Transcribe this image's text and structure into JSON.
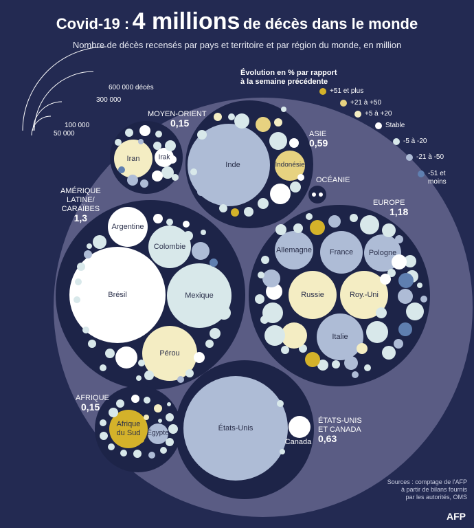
{
  "header": {
    "title_pre": "Covid-19 :",
    "title_big": "4 millions",
    "title_post": "de décès dans le monde",
    "subtitle": "Nombre de décès recensés par pays et territoire et par région du monde, en million"
  },
  "legend": {
    "title_line1": "Évolution en % par rapport",
    "title_line2": "à la semaine précédente",
    "items": [
      {
        "label": "+51 et plus",
        "color": "#d4b22a"
      },
      {
        "label": "+21 à +50",
        "color": "#e7d280"
      },
      {
        "label": "+5 à +20",
        "color": "#f4edc3"
      },
      {
        "label": "Stable",
        "color": "#ffffff"
      },
      {
        "label": "-5 à -20",
        "color": "#d8e8ea"
      },
      {
        "label": "-21 à -50",
        "color": "#aebcd6"
      },
      {
        "label": "-51 et moins",
        "color": "#5f7fb0"
      }
    ]
  },
  "size_legend": [
    "600 000 décès",
    "300 000",
    "100 000",
    "50 000"
  ],
  "colors": {
    "background": "#232a52",
    "world_disc": "#5a5c84",
    "region_disc": "#1d2448"
  },
  "chart_data": {
    "type": "bubble",
    "unit": "millions",
    "total": "4 millions",
    "regions": [
      {
        "name": "MOYEN-ORIENT",
        "value": "0,15",
        "countries": [
          "Iran",
          "Irak"
        ]
      },
      {
        "name": "ASIE",
        "value": "0,59",
        "countries": [
          "Inde",
          "Indonésie"
        ]
      },
      {
        "name": "OCÉANIE",
        "value": "",
        "countries": []
      },
      {
        "name_lines": [
          "AMÉRIQUE",
          "LATINE/",
          "CARAÏBES"
        ],
        "name": "AMÉRIQUE LATINE/ CARAÏBES",
        "value": "1,3",
        "countries": [
          "Argentine",
          "Colombie",
          "Brésil",
          "Mexique",
          "Pérou"
        ]
      },
      {
        "name": "EUROPE",
        "value": "1,18",
        "countries": [
          "Allemagne",
          "France",
          "Pologne",
          "Russie",
          "Roy.-Uni",
          "Italie"
        ]
      },
      {
        "name": "AFRIQUE",
        "value": "0,15",
        "countries": [
          "Afrique du Sud",
          "Égypte"
        ]
      },
      {
        "name_lines": [
          "ÉTATS-UNIS",
          "ET CANADA"
        ],
        "name": "ÉTATS-UNIS ET CANADA",
        "value": "0,63",
        "countries": [
          "États-Unis",
          "Canada"
        ]
      }
    ],
    "country_labels": {
      "iran": "Iran",
      "irak": "Irak",
      "inde": "Inde",
      "indonesie": "Indonésie",
      "argentine": "Argentine",
      "colombie": "Colombie",
      "bresil": "Brésil",
      "mexique": "Mexique",
      "perou": "Pérou",
      "allemagne": "Allemagne",
      "france": "France",
      "pologne": "Pologne",
      "russie": "Russie",
      "royuni": "Roy.-Uni",
      "italie": "Italie",
      "afriquedusud_1": "Afrique",
      "afriquedusud_2": "du Sud",
      "egypte": "Égypte",
      "etatsunis": "États-Unis",
      "canada": "Canada"
    }
  },
  "source": {
    "line1": "Sources : comptage de l'AFP",
    "line2": "à partir de bilans fournis",
    "line3": "par les autorités, OMS"
  },
  "brand": "AFP"
}
